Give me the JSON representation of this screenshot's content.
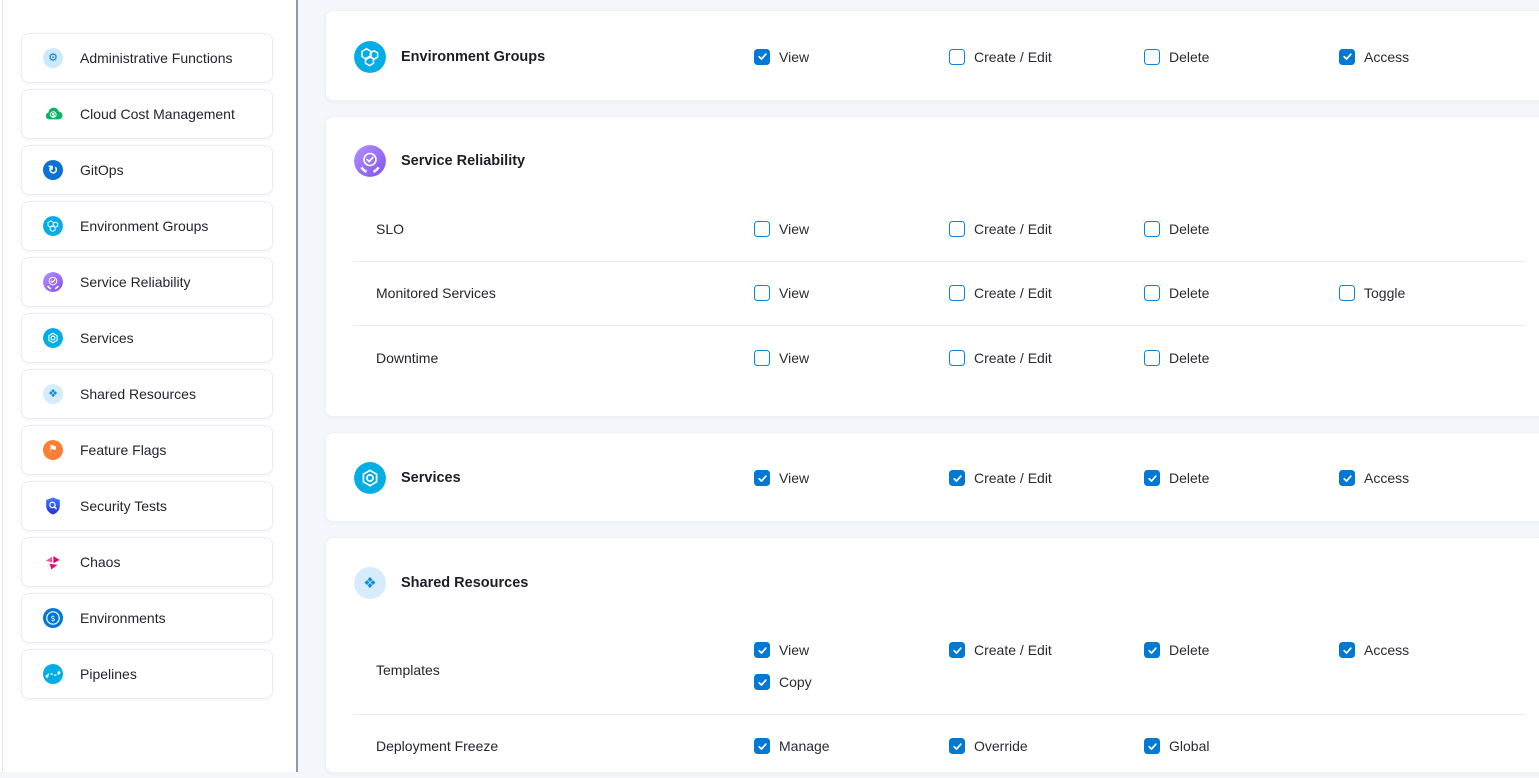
{
  "sidebar": {
    "items": [
      {
        "label": "Administrative Functions",
        "icon": "admin"
      },
      {
        "label": "Cloud Cost Management",
        "icon": "cloud-cost"
      },
      {
        "label": "GitOps",
        "icon": "gitops"
      },
      {
        "label": "Environment Groups",
        "icon": "environment-groups"
      },
      {
        "label": "Service Reliability",
        "icon": "service-reliability"
      },
      {
        "label": "Services",
        "icon": "services"
      },
      {
        "label": "Shared Resources",
        "icon": "shared-resources"
      },
      {
        "label": "Feature Flags",
        "icon": "feature-flags"
      },
      {
        "label": "Security Tests",
        "icon": "security-tests"
      },
      {
        "label": "Chaos",
        "icon": "chaos"
      },
      {
        "label": "Environments",
        "icon": "environments"
      },
      {
        "label": "Pipelines",
        "icon": "pipelines"
      }
    ]
  },
  "main": {
    "cards": [
      {
        "title": "Environment Groups",
        "icon": "environment-groups",
        "header_permissions": [
          {
            "label": "View",
            "checked": true
          },
          {
            "label": "Create / Edit",
            "checked": false
          },
          {
            "label": "Delete",
            "checked": false
          },
          {
            "label": "Access",
            "checked": true
          }
        ],
        "rows": []
      },
      {
        "title": "Service Reliability",
        "icon": "service-reliability",
        "header_permissions": null,
        "rows": [
          {
            "name": "SLO",
            "lines": [
              [
                {
                  "label": "View",
                  "checked": false
                },
                {
                  "label": "Create / Edit",
                  "checked": false
                },
                {
                  "label": "Delete",
                  "checked": false
                }
              ]
            ]
          },
          {
            "name": "Monitored Services",
            "lines": [
              [
                {
                  "label": "View",
                  "checked": false
                },
                {
                  "label": "Create / Edit",
                  "checked": false
                },
                {
                  "label": "Delete",
                  "checked": false
                },
                {
                  "label": "Toggle",
                  "checked": false
                }
              ]
            ]
          },
          {
            "name": "Downtime",
            "lines": [
              [
                {
                  "label": "View",
                  "checked": false
                },
                {
                  "label": "Create / Edit",
                  "checked": false
                },
                {
                  "label": "Delete",
                  "checked": false
                }
              ]
            ]
          }
        ]
      },
      {
        "title": "Services",
        "icon": "services",
        "header_permissions": [
          {
            "label": "View",
            "checked": true
          },
          {
            "label": "Create / Edit",
            "checked": true
          },
          {
            "label": "Delete",
            "checked": true
          },
          {
            "label": "Access",
            "checked": true
          }
        ],
        "rows": []
      },
      {
        "title": "Shared Resources",
        "icon": "shared-resources",
        "header_permissions": null,
        "rows": [
          {
            "name": "Templates",
            "lines": [
              [
                {
                  "label": "View",
                  "checked": true
                },
                {
                  "label": "Create / Edit",
                  "checked": true
                },
                {
                  "label": "Delete",
                  "checked": true
                },
                {
                  "label": "Access",
                  "checked": true
                }
              ],
              [
                {
                  "label": "Copy",
                  "checked": true
                }
              ]
            ]
          },
          {
            "name": "Deployment Freeze",
            "lines": [
              [
                {
                  "label": "Manage",
                  "checked": true
                },
                {
                  "label": "Override",
                  "checked": true
                },
                {
                  "label": "Global",
                  "checked": true
                }
              ]
            ]
          }
        ]
      }
    ]
  },
  "colors": {
    "accent_blue": "#0278d5",
    "checkbox_border": "#0a85dd",
    "cyan": "#00ade4",
    "green": "#0ab26a",
    "purple_start": "#b391fb",
    "purple_end": "#8350f2",
    "orange": "#fd7e35",
    "gitops_blue": "#0b71d2",
    "security_blue_start": "#3f7bfe",
    "security_blue_end": "#2531d4",
    "pink": "#ee0c6e",
    "light_blue": "#cdeafc",
    "shared_glyph_blue": "#0b92d8",
    "background": "#f3f7fb",
    "panel_divider": "#9396aa"
  }
}
